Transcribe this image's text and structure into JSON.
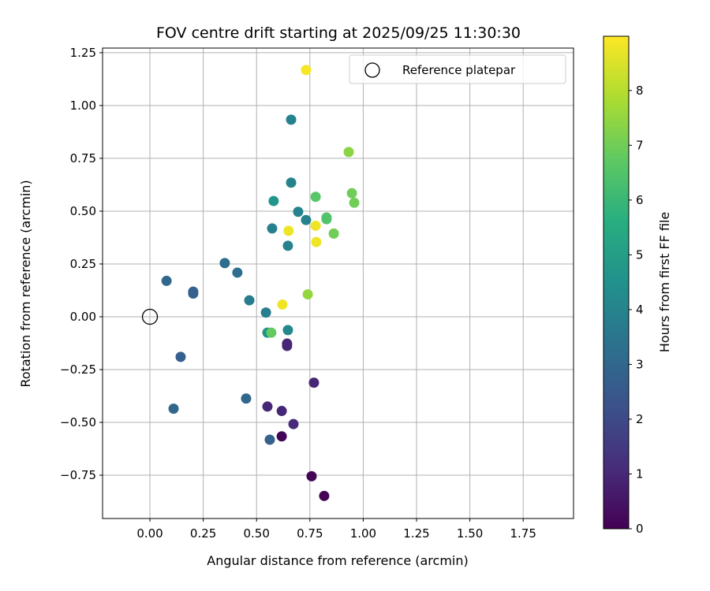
{
  "chart_data": {
    "type": "scatter",
    "title": "FOV centre drift starting at 2025/09/25 11:30:30",
    "xlabel": "Angular distance from reference (arcmin)",
    "ylabel": "Rotation from reference (arcmin)",
    "xlim": [
      -0.222,
      1.986
    ],
    "ylim": [
      -0.955,
      1.272
    ],
    "xticks": [
      "0.00",
      "0.25",
      "0.50",
      "0.75",
      "1.00",
      "1.25",
      "1.50",
      "1.75"
    ],
    "xtick_values": [
      0,
      0.25,
      0.5,
      0.75,
      1,
      1.25,
      1.5,
      1.75
    ],
    "yticks": [
      "−0.75",
      "−0.50",
      "−0.25",
      "0.00",
      "0.25",
      "0.50",
      "0.75",
      "1.00",
      "1.25"
    ],
    "ytick_values": [
      -0.75,
      -0.5,
      -0.25,
      0,
      0.25,
      0.5,
      0.75,
      1,
      1.25
    ],
    "grid": true,
    "legend": {
      "placement": "top-right",
      "entries": [
        "Reference platepar"
      ]
    },
    "reference_point": {
      "x": 0,
      "y": 0
    },
    "colorbar": {
      "label": "Hours from first FF file",
      "colormap": "viridis",
      "range": [
        0,
        8.99
      ],
      "ticks": [
        "0",
        "1",
        "2",
        "3",
        "4",
        "5",
        "6",
        "7",
        "8"
      ],
      "tick_values": [
        0,
        1,
        2,
        3,
        4,
        5,
        6,
        7,
        8
      ]
    },
    "points": [
      {
        "x": 0.732,
        "y": 1.168,
        "hours": 8.9
      },
      {
        "x": 0.662,
        "y": 0.933,
        "hours": 4.0
      },
      {
        "x": 0.932,
        "y": 0.78,
        "hours": 7.4
      },
      {
        "x": 0.947,
        "y": 0.585,
        "hours": 7.0
      },
      {
        "x": 0.958,
        "y": 0.54,
        "hours": 7.0
      },
      {
        "x": 0.662,
        "y": 0.635,
        "hours": 4.0
      },
      {
        "x": 0.777,
        "y": 0.568,
        "hours": 6.6
      },
      {
        "x": 0.58,
        "y": 0.548,
        "hours": 4.7
      },
      {
        "x": 0.695,
        "y": 0.497,
        "hours": 4.0
      },
      {
        "x": 0.732,
        "y": 0.458,
        "hours": 4.0
      },
      {
        "x": 0.828,
        "y": 0.47,
        "hours": 6.5
      },
      {
        "x": 0.828,
        "y": 0.462,
        "hours": 6.5
      },
      {
        "x": 0.573,
        "y": 0.418,
        "hours": 3.9
      },
      {
        "x": 0.65,
        "y": 0.407,
        "hours": 8.8
      },
      {
        "x": 0.777,
        "y": 0.431,
        "hours": 8.8
      },
      {
        "x": 0.862,
        "y": 0.394,
        "hours": 7.0
      },
      {
        "x": 0.78,
        "y": 0.354,
        "hours": 8.8
      },
      {
        "x": 0.647,
        "y": 0.336,
        "hours": 4.0
      },
      {
        "x": 0.351,
        "y": 0.254,
        "hours": 3.2
      },
      {
        "x": 0.41,
        "y": 0.209,
        "hours": 3.2
      },
      {
        "x": 0.078,
        "y": 0.17,
        "hours": 3.0
      },
      {
        "x": 0.203,
        "y": 0.119,
        "hours": 2.8
      },
      {
        "x": 0.203,
        "y": 0.11,
        "hours": 2.8
      },
      {
        "x": 0.466,
        "y": 0.078,
        "hours": 3.7
      },
      {
        "x": 0.621,
        "y": 0.058,
        "hours": 8.8
      },
      {
        "x": 0.74,
        "y": 0.106,
        "hours": 7.5
      },
      {
        "x": 0.544,
        "y": 0.02,
        "hours": 3.8
      },
      {
        "x": 0.551,
        "y": -0.075,
        "hours": 4.5
      },
      {
        "x": 0.569,
        "y": -0.075,
        "hours": 6.8
      },
      {
        "x": 0.647,
        "y": -0.063,
        "hours": 4.2
      },
      {
        "x": 0.643,
        "y": -0.127,
        "hours": 1.0
      },
      {
        "x": 0.643,
        "y": -0.138,
        "hours": 1.0
      },
      {
        "x": 0.144,
        "y": -0.19,
        "hours": 2.7
      },
      {
        "x": 0.769,
        "y": -0.312,
        "hours": 1.0
      },
      {
        "x": 0.111,
        "y": -0.435,
        "hours": 3.0
      },
      {
        "x": 0.451,
        "y": -0.387,
        "hours": 3.0
      },
      {
        "x": 0.551,
        "y": -0.425,
        "hours": 1.0
      },
      {
        "x": 0.618,
        "y": -0.446,
        "hours": 1.0
      },
      {
        "x": 0.673,
        "y": -0.508,
        "hours": 1.1
      },
      {
        "x": 0.562,
        "y": -0.582,
        "hours": 2.8
      },
      {
        "x": 0.618,
        "y": -0.566,
        "hours": 0.1
      },
      {
        "x": 0.758,
        "y": -0.755,
        "hours": 0.1
      },
      {
        "x": 0.817,
        "y": -0.848,
        "hours": 0.1
      }
    ]
  }
}
